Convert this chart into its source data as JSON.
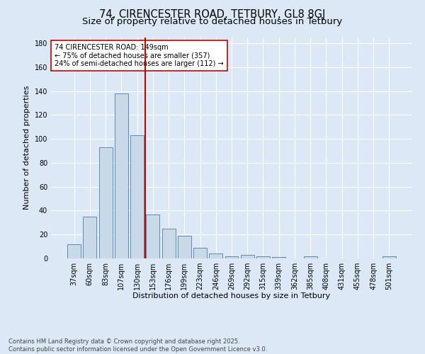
{
  "title1": "74, CIRENCESTER ROAD, TETBURY, GL8 8GJ",
  "title2": "Size of property relative to detached houses in Tetbury",
  "xlabel": "Distribution of detached houses by size in Tetbury",
  "ylabel": "Number of detached properties",
  "bar_labels": [
    "37sqm",
    "60sqm",
    "83sqm",
    "107sqm",
    "130sqm",
    "153sqm",
    "176sqm",
    "199sqm",
    "223sqm",
    "246sqm",
    "269sqm",
    "292sqm",
    "315sqm",
    "339sqm",
    "362sqm",
    "385sqm",
    "408sqm",
    "431sqm",
    "455sqm",
    "478sqm",
    "501sqm"
  ],
  "bar_values": [
    12,
    35,
    93,
    138,
    103,
    37,
    25,
    19,
    9,
    4,
    2,
    3,
    2,
    1,
    0,
    2,
    0,
    0,
    0,
    0,
    2
  ],
  "bar_color": "#c9d9e8",
  "bar_edgecolor": "#5b8db8",
  "vline_color": "#cc0000",
  "vline_x": 4.5,
  "annotation_text": "74 CIRENCESTER ROAD: 149sqm\n← 75% of detached houses are smaller (357)\n24% of semi-detached houses are larger (112) →",
  "annotation_box_color": "#ffffff",
  "annotation_box_edgecolor": "#cc0000",
  "background_color": "#dce8f5",
  "ylim": [
    0,
    185
  ],
  "yticks": [
    0,
    20,
    40,
    60,
    80,
    100,
    120,
    140,
    160,
    180
  ],
  "footer": "Contains HM Land Registry data © Crown copyright and database right 2025.\nContains public sector information licensed under the Open Government Licence v3.0.",
  "title1_fontsize": 10.5,
  "title2_fontsize": 9.5,
  "annotation_fontsize": 7,
  "footer_fontsize": 6,
  "ylabel_fontsize": 8,
  "xlabel_fontsize": 8,
  "tick_fontsize": 7
}
